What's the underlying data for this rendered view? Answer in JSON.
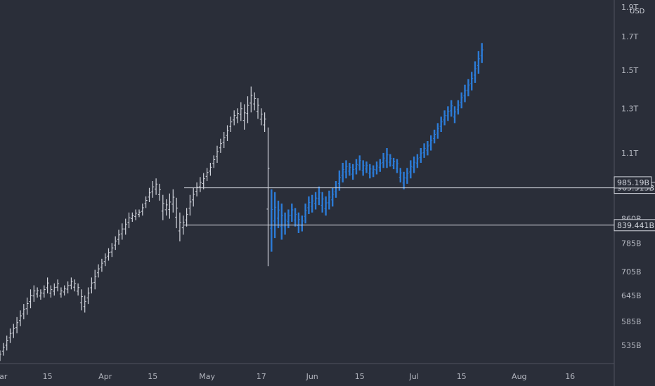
{
  "chart_data": {
    "type": "ohlc",
    "currency_label": "USD",
    "y_scale": "log",
    "ylim": [
      500000000000,
      1950000000000
    ],
    "y_ticks": [
      {
        "value": 1900000000000,
        "label": "1.9T"
      },
      {
        "value": 1700000000000,
        "label": "1.7T"
      },
      {
        "value": 1500000000000,
        "label": "1.5T"
      },
      {
        "value": 1300000000000,
        "label": "1.3T"
      },
      {
        "value": 1100000000000,
        "label": "1.1T"
      },
      {
        "value": 860000000000,
        "label": "860B"
      },
      {
        "value": 785000000000,
        "label": "785B"
      },
      {
        "value": 705000000000,
        "label": "705B"
      },
      {
        "value": 645000000000,
        "label": "645B"
      },
      {
        "value": 585000000000,
        "label": "585B"
      },
      {
        "value": 535000000000,
        "label": "535B"
      }
    ],
    "x_ticks": [
      {
        "date": "2021-03-01",
        "label": "Mar"
      },
      {
        "date": "2021-03-15",
        "label": "15"
      },
      {
        "date": "2021-04-01",
        "label": "Apr"
      },
      {
        "date": "2021-04-15",
        "label": "15"
      },
      {
        "date": "2021-05-01",
        "label": "May"
      },
      {
        "date": "2021-05-17",
        "label": "17"
      },
      {
        "date": "2021-06-01",
        "label": "Jun"
      },
      {
        "date": "2021-06-15",
        "label": "15"
      },
      {
        "date": "2021-07-01",
        "label": "Jul"
      },
      {
        "date": "2021-07-15",
        "label": "15"
      },
      {
        "date": "2021-08-01",
        "label": "Aug"
      },
      {
        "date": "2021-08-16",
        "label": "16"
      }
    ],
    "xlim": [
      "2021-03-01",
      "2021-08-29"
    ],
    "horizontal_lines": [
      {
        "value": 965313000000,
        "label": "965.313B"
      },
      {
        "value": 839441000000,
        "label": "839.441B"
      }
    ],
    "current_price": {
      "value": 985190000000,
      "label": "985.19B"
    },
    "series": [
      {
        "style": "ohlc",
        "color": "#d1d4dc",
        "points": [
          [
            "2021-03-01",
            505,
            525
          ],
          [
            "2021-03-02",
            515,
            540
          ],
          [
            "2021-03-03",
            525,
            555
          ],
          [
            "2021-03-04",
            540,
            570
          ],
          [
            "2021-03-05",
            550,
            580
          ],
          [
            "2021-03-06",
            560,
            595
          ],
          [
            "2021-03-07",
            575,
            610
          ],
          [
            "2021-03-08",
            590,
            625
          ],
          [
            "2021-03-09",
            600,
            640
          ],
          [
            "2021-03-10",
            615,
            660
          ],
          [
            "2021-03-11",
            630,
            670
          ],
          [
            "2021-03-12",
            640,
            665
          ],
          [
            "2021-03-13",
            635,
            660
          ],
          [
            "2021-03-14",
            640,
            670
          ],
          [
            "2021-03-15",
            650,
            690
          ],
          [
            "2021-03-16",
            640,
            670
          ],
          [
            "2021-03-17",
            645,
            675
          ],
          [
            "2021-03-18",
            655,
            685
          ],
          [
            "2021-03-19",
            640,
            665
          ],
          [
            "2021-03-20",
            645,
            670
          ],
          [
            "2021-03-21",
            650,
            680
          ],
          [
            "2021-03-22",
            660,
            690
          ],
          [
            "2021-03-23",
            655,
            685
          ],
          [
            "2021-03-24",
            645,
            675
          ],
          [
            "2021-03-25",
            610,
            660
          ],
          [
            "2021-03-26",
            605,
            645
          ],
          [
            "2021-03-27",
            625,
            665
          ],
          [
            "2021-03-28",
            650,
            690
          ],
          [
            "2021-03-29",
            660,
            710
          ],
          [
            "2021-03-30",
            690,
            725
          ],
          [
            "2021-03-31",
            705,
            740
          ],
          [
            "2021-04-01",
            720,
            755
          ],
          [
            "2021-04-02",
            735,
            770
          ],
          [
            "2021-04-03",
            745,
            785
          ],
          [
            "2021-04-04",
            765,
            805
          ],
          [
            "2021-04-05",
            780,
            825
          ],
          [
            "2021-04-06",
            795,
            845
          ],
          [
            "2021-04-07",
            810,
            860
          ],
          [
            "2021-04-08",
            830,
            880
          ],
          [
            "2021-04-09",
            850,
            880
          ],
          [
            "2021-04-10",
            855,
            890
          ],
          [
            "2021-04-11",
            865,
            890
          ],
          [
            "2021-04-12",
            870,
            910
          ],
          [
            "2021-04-13",
            895,
            935
          ],
          [
            "2021-04-14",
            915,
            965
          ],
          [
            "2021-04-15",
            930,
            990
          ],
          [
            "2021-04-16",
            940,
            1000
          ],
          [
            "2021-04-17",
            920,
            980
          ],
          [
            "2021-04-18",
            855,
            940
          ],
          [
            "2021-04-19",
            870,
            925
          ],
          [
            "2021-04-20",
            860,
            945
          ],
          [
            "2021-04-21",
            880,
            960
          ],
          [
            "2021-04-22",
            830,
            930
          ],
          [
            "2021-04-23",
            790,
            880
          ],
          [
            "2021-04-24",
            810,
            870
          ],
          [
            "2021-04-25",
            835,
            895
          ],
          [
            "2021-04-26",
            870,
            940
          ],
          [
            "2021-04-27",
            900,
            965
          ],
          [
            "2021-04-28",
            935,
            985
          ],
          [
            "2021-04-29",
            950,
            1005
          ],
          [
            "2021-04-30",
            960,
            1020
          ],
          [
            "2021-05-01",
            990,
            1040
          ],
          [
            "2021-05-02",
            1010,
            1060
          ],
          [
            "2021-05-03",
            1040,
            1090
          ],
          [
            "2021-05-04",
            1060,
            1130
          ],
          [
            "2021-05-05",
            1100,
            1160
          ],
          [
            "2021-05-06",
            1120,
            1190
          ],
          [
            "2021-05-07",
            1150,
            1220
          ],
          [
            "2021-05-08",
            1190,
            1260
          ],
          [
            "2021-05-09",
            1220,
            1290
          ],
          [
            "2021-05-10",
            1230,
            1300
          ],
          [
            "2021-05-11",
            1240,
            1330
          ],
          [
            "2021-05-12",
            1200,
            1320
          ],
          [
            "2021-05-13",
            1230,
            1360
          ],
          [
            "2021-05-14",
            1280,
            1410
          ],
          [
            "2021-05-15",
            1290,
            1380
          ],
          [
            "2021-05-16",
            1250,
            1350
          ],
          [
            "2021-05-17",
            1220,
            1300
          ],
          [
            "2021-05-18",
            1190,
            1280
          ],
          [
            "2021-05-19",
            720,
            1210
          ]
        ]
      },
      {
        "style": "ohlc",
        "color": "#2c7bd6",
        "points": [
          [
            "2021-05-20",
            760,
            960
          ],
          [
            "2021-05-21",
            800,
            950
          ],
          [
            "2021-05-22",
            830,
            920
          ],
          [
            "2021-05-23",
            795,
            910
          ],
          [
            "2021-05-24",
            810,
            880
          ],
          [
            "2021-05-25",
            830,
            890
          ],
          [
            "2021-05-26",
            850,
            910
          ],
          [
            "2021-05-27",
            835,
            895
          ],
          [
            "2021-05-28",
            815,
            880
          ],
          [
            "2021-05-29",
            820,
            870
          ],
          [
            "2021-05-30",
            845,
            910
          ],
          [
            "2021-05-31",
            875,
            935
          ],
          [
            "2021-06-01",
            880,
            940
          ],
          [
            "2021-06-02",
            890,
            950
          ],
          [
            "2021-06-03",
            905,
            970
          ],
          [
            "2021-06-04",
            880,
            950
          ],
          [
            "2021-06-05",
            870,
            935
          ],
          [
            "2021-06-06",
            890,
            955
          ],
          [
            "2021-06-07",
            900,
            965
          ],
          [
            "2021-06-08",
            930,
            990
          ],
          [
            "2021-06-09",
            955,
            1030
          ],
          [
            "2021-06-10",
            985,
            1060
          ],
          [
            "2021-06-11",
            1000,
            1070
          ],
          [
            "2021-06-12",
            1010,
            1060
          ],
          [
            "2021-06-13",
            995,
            1055
          ],
          [
            "2021-06-14",
            1015,
            1075
          ],
          [
            "2021-06-15",
            1030,
            1090
          ],
          [
            "2021-06-16",
            1010,
            1070
          ],
          [
            "2021-06-17",
            1020,
            1065
          ],
          [
            "2021-06-18",
            1000,
            1055
          ],
          [
            "2021-06-19",
            1005,
            1050
          ],
          [
            "2021-06-20",
            1015,
            1065
          ],
          [
            "2021-06-21",
            1025,
            1075
          ],
          [
            "2021-06-22",
            1040,
            1100
          ],
          [
            "2021-06-23",
            1040,
            1120
          ],
          [
            "2021-06-24",
            1045,
            1095
          ],
          [
            "2021-06-25",
            1035,
            1080
          ],
          [
            "2021-06-26",
            1020,
            1075
          ],
          [
            "2021-06-27",
            985,
            1040
          ],
          [
            "2021-06-28",
            960,
            1025
          ],
          [
            "2021-06-29",
            980,
            1040
          ],
          [
            "2021-06-30",
            1000,
            1070
          ],
          [
            "2021-07-01",
            1020,
            1085
          ],
          [
            "2021-07-02",
            1040,
            1095
          ],
          [
            "2021-07-03",
            1060,
            1120
          ],
          [
            "2021-07-04",
            1080,
            1140
          ],
          [
            "2021-07-05",
            1090,
            1150
          ],
          [
            "2021-07-06",
            1110,
            1175
          ],
          [
            "2021-07-07",
            1140,
            1200
          ],
          [
            "2021-07-08",
            1160,
            1230
          ],
          [
            "2021-07-09",
            1190,
            1260
          ],
          [
            "2021-07-10",
            1220,
            1290
          ],
          [
            "2021-07-11",
            1240,
            1310
          ],
          [
            "2021-07-12",
            1260,
            1340
          ],
          [
            "2021-07-13",
            1230,
            1310
          ],
          [
            "2021-07-14",
            1270,
            1340
          ],
          [
            "2021-07-15",
            1300,
            1380
          ],
          [
            "2021-07-16",
            1330,
            1420
          ],
          [
            "2021-07-17",
            1360,
            1450
          ],
          [
            "2021-07-18",
            1390,
            1490
          ],
          [
            "2021-07-19",
            1430,
            1550
          ],
          [
            "2021-07-20",
            1480,
            1610
          ],
          [
            "2021-07-21",
            1540,
            1660
          ]
        ]
      }
    ]
  }
}
